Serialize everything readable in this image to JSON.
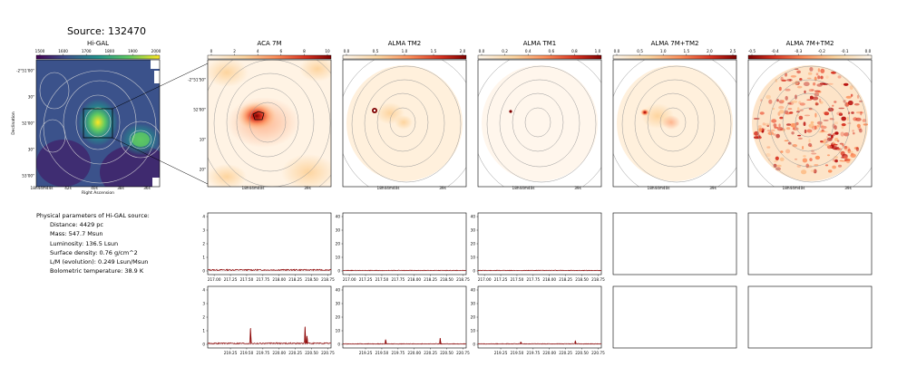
{
  "title": "Source: 132470",
  "params": {
    "header": "Physical parameters of Hi-GAL source:",
    "lines": [
      "Distance: 4429 pc",
      "Mass: 547.7 Msun",
      "Luminosity: 136.5 Lsun",
      "Surface density: 0.76 g/cm^2",
      "L/M (evolution): 0.249 Lsun/Msun",
      "Bolometric temperature: 38.9 K"
    ]
  },
  "colors": {
    "viridis": [
      "#440154",
      "#3b528b",
      "#21918c",
      "#5ec962",
      "#fde725"
    ],
    "orrd": [
      "#fff7ec",
      "#fdd49e",
      "#fc8d59",
      "#d7301f",
      "#7f0000"
    ],
    "spectrum": "#8b0000",
    "contour": "#999999"
  },
  "chart_data": [
    {
      "type": "heatmap",
      "title": "Hi-GAL",
      "colorbar_ticks": [
        "1500",
        "1600",
        "1700",
        "1800",
        "1900",
        "2000"
      ],
      "y_ticks": [
        "-2°51'00\"",
        "30\"",
        "52'00\"",
        "30\"",
        "53'00\""
      ],
      "x_ticks": [
        "18h44m44s",
        "42s",
        "40s",
        "38s",
        "36s"
      ],
      "xlabel": "Right Ascension",
      "ylabel": "Declination"
    },
    {
      "type": "heatmap",
      "title": "ACA 7M",
      "colorbar_ticks": [
        "0",
        "2",
        "4",
        "6",
        "8",
        "10"
      ],
      "y_ticks": [
        "-2°51'50\"",
        "52'00\"",
        "10\"",
        "20\""
      ],
      "x_ticks": [
        "18h44m40s",
        "39s"
      ]
    },
    {
      "type": "heatmap",
      "title": "ALMA TM2",
      "colorbar_ticks": [
        "0.0",
        "0.5",
        "1.0",
        "1.5",
        "2.0"
      ],
      "x_ticks": [
        "18h44m40s",
        "39s"
      ]
    },
    {
      "type": "heatmap",
      "title": "ALMA TM1",
      "colorbar_ticks": [
        "0.0",
        "0.2",
        "0.4",
        "0.6",
        "0.8",
        "1.0"
      ],
      "x_ticks": [
        "18h44m40s",
        "39s"
      ]
    },
    {
      "type": "heatmap",
      "title": "ALMA 7M+TM2",
      "colorbar_ticks": [
        "0.0",
        "0.5",
        "1.0",
        "1.5",
        "2.0",
        "2.5"
      ],
      "x_ticks": [
        "18h44m40s",
        "39s"
      ]
    },
    {
      "type": "heatmap",
      "title": "ALMA 7M+TM2",
      "colorbar_ticks": [
        "-0.5",
        "-0.4",
        "-0.3",
        "-0.2",
        "-0.1",
        "0.0"
      ],
      "x_ticks": [
        "18h44m40s",
        "39s"
      ]
    },
    {
      "type": "line",
      "panel": "ACA 7M upper",
      "xlim": [
        216.9,
        218.8
      ],
      "ylim": [
        0,
        4
      ],
      "y_ticks": [
        "0",
        "1",
        "2",
        "3",
        "4"
      ],
      "x_ticks": [
        "217.00",
        "217.25",
        "217.50",
        "217.75",
        "218.00",
        "218.25",
        "218.50",
        "218.75"
      ],
      "baseline": 0.1,
      "peaks": []
    },
    {
      "type": "line",
      "panel": "ALMA TM2 upper",
      "xlim": [
        216.9,
        218.8
      ],
      "ylim": [
        0,
        40
      ],
      "y_ticks": [
        "0",
        "10",
        "20",
        "30",
        "40"
      ],
      "x_ticks": [
        "217.00",
        "217.25",
        "217.50",
        "217.75",
        "218.00",
        "218.25",
        "218.50",
        "218.75"
      ],
      "baseline": 0.5,
      "peaks": []
    },
    {
      "type": "line",
      "panel": "ALMA TM1 upper",
      "xlim": [
        216.9,
        218.8
      ],
      "ylim": [
        0,
        40
      ],
      "y_ticks": [
        "0",
        "10",
        "20",
        "30",
        "40"
      ],
      "x_ticks": [
        "217.00",
        "217.25",
        "217.50",
        "217.75",
        "218.00",
        "218.25",
        "218.50",
        "218.75"
      ],
      "baseline": 0.5,
      "peaks": []
    },
    {
      "type": "line",
      "panel": "ACA 7M lower",
      "xlim": [
        218.9,
        220.8
      ],
      "ylim": [
        0,
        4
      ],
      "y_ticks": [
        "0",
        "1",
        "2",
        "3",
        "4"
      ],
      "x_ticks": [
        "219.25",
        "219.50",
        "219.75",
        "220.00",
        "220.25",
        "220.50",
        "220.75"
      ],
      "baseline": 0.1,
      "peaks": [
        [
          219.56,
          1.2
        ],
        [
          220.4,
          1.3
        ],
        [
          220.43,
          0.6
        ]
      ]
    },
    {
      "type": "line",
      "panel": "ALMA TM2 lower",
      "xlim": [
        218.9,
        220.8
      ],
      "ylim": [
        0,
        40
      ],
      "y_ticks": [
        "0",
        "10",
        "20",
        "30",
        "40"
      ],
      "x_ticks": [
        "219.25",
        "219.50",
        "219.75",
        "220.00",
        "220.25",
        "220.50",
        "220.75"
      ],
      "baseline": 0.5,
      "peaks": [
        [
          219.56,
          3.5
        ],
        [
          220.4,
          4.5
        ]
      ]
    },
    {
      "type": "line",
      "panel": "ALMA TM1 lower",
      "xlim": [
        218.9,
        220.8
      ],
      "ylim": [
        0,
        40
      ],
      "y_ticks": [
        "0",
        "10",
        "20",
        "30",
        "40"
      ],
      "x_ticks": [
        "219.25",
        "219.50",
        "219.75",
        "220.00",
        "220.25",
        "220.50",
        "220.75"
      ],
      "baseline": 0.5,
      "peaks": [
        [
          219.56,
          1.5
        ],
        [
          220.4,
          2.5
        ]
      ]
    }
  ]
}
